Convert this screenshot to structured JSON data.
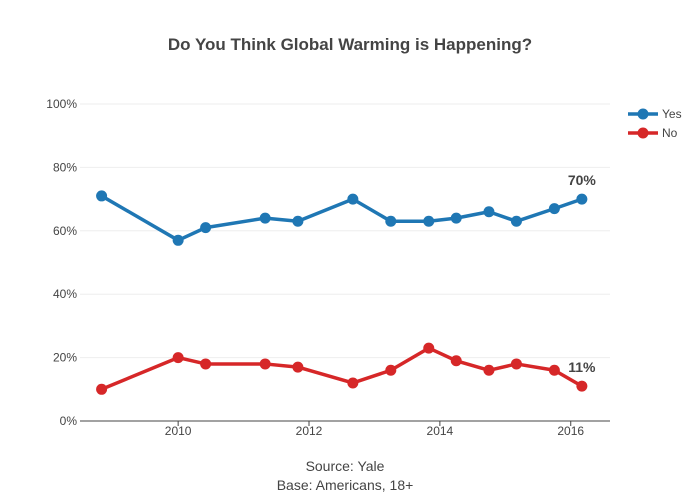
{
  "chart_data": {
    "type": "line",
    "title": "Do You Think Global Warming is Happening?",
    "xlabel": "",
    "ylabel": "",
    "xlim": [
      2008.5,
      2016.6
    ],
    "ylim": [
      0,
      100
    ],
    "x_ticks": [
      2010,
      2012,
      2014,
      2016
    ],
    "x_tick_labels": [
      "2010",
      "2012",
      "2014",
      "2016"
    ],
    "y_ticks": [
      0,
      20,
      40,
      60,
      80,
      100
    ],
    "y_tick_labels": [
      "0%",
      "20%",
      "40%",
      "60%",
      "80%",
      "100%"
    ],
    "grid": true,
    "legend_position": "top-right",
    "series": [
      {
        "name": "Yes",
        "color": "#1f77b4",
        "x": [
          2008.83,
          2010.0,
          2010.42,
          2011.33,
          2011.83,
          2012.67,
          2013.25,
          2013.83,
          2014.25,
          2014.75,
          2015.17,
          2015.75,
          2016.17
        ],
        "values": [
          71,
          57,
          61,
          64,
          63,
          70,
          63,
          63,
          64,
          66,
          63,
          67,
          70
        ]
      },
      {
        "name": "No",
        "color": "#d62728",
        "x": [
          2008.83,
          2010.0,
          2010.42,
          2011.33,
          2011.83,
          2012.67,
          2013.25,
          2013.83,
          2014.25,
          2014.75,
          2015.17,
          2015.75,
          2016.17
        ],
        "values": [
          10,
          20,
          18,
          18,
          17,
          12,
          16,
          23,
          19,
          16,
          18,
          16,
          11
        ]
      }
    ],
    "annotations": [
      {
        "text": "70%",
        "x": 2016.17,
        "y": 70,
        "series": "Yes"
      },
      {
        "text": "11%",
        "x": 2016.17,
        "y": 11,
        "series": "No"
      }
    ],
    "source_lines": [
      "Source: Yale",
      "Base: Americans, 18+"
    ]
  }
}
